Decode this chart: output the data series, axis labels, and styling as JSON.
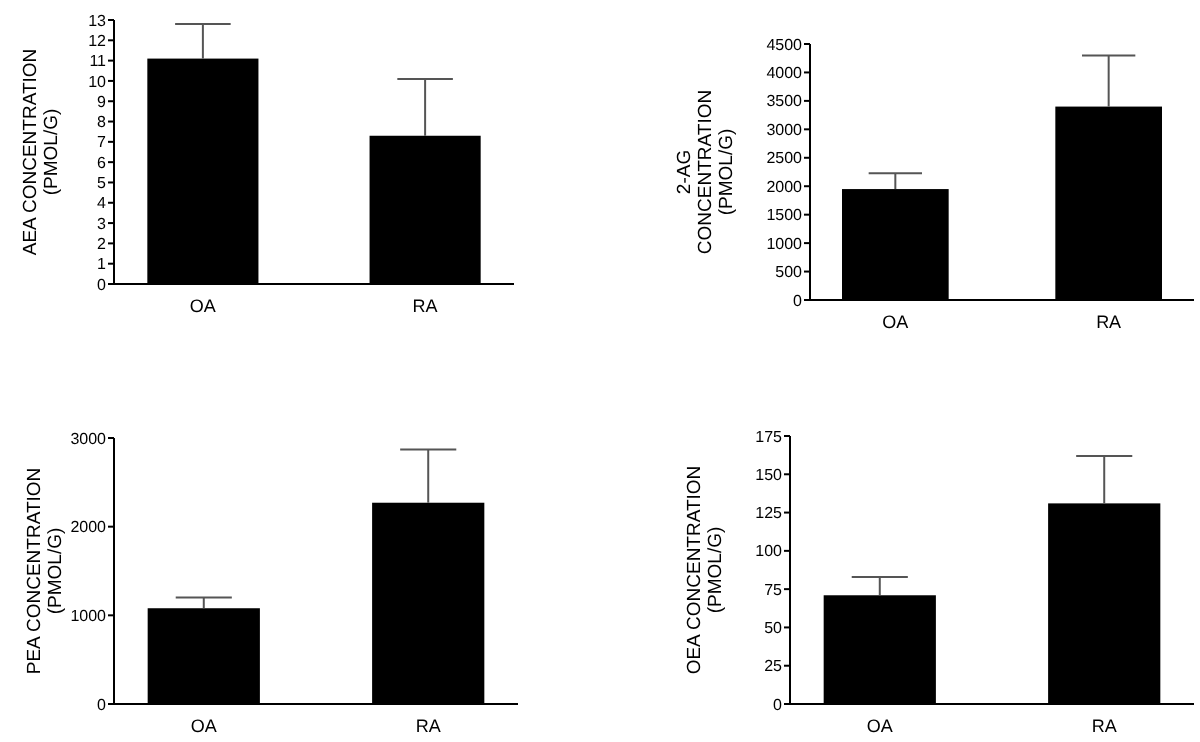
{
  "chart_data": [
    {
      "type": "bar",
      "ylabel": "AEA CONCENTRATION\n(PMOL/G)",
      "categories": [
        "OA",
        "RA"
      ],
      "values": [
        11.1,
        7.3
      ],
      "errors": [
        [
          11.1,
          12.8
        ],
        [
          7.3,
          10.1
        ]
      ],
      "color": "#000000",
      "ylim": [
        0,
        13
      ],
      "yticks": [
        0,
        1,
        2,
        3,
        4,
        5,
        6,
        7,
        8,
        9,
        10,
        11,
        12,
        13
      ]
    },
    {
      "type": "bar",
      "ylabel": "2-AG\nCONCENTRATION\n(PMOL/G)",
      "categories": [
        "OA",
        "RA"
      ],
      "values": [
        1950,
        3400
      ],
      "errors": [
        [
          1950,
          2230
        ],
        [
          3400,
          4300
        ]
      ],
      "color": "#000000",
      "ylim": [
        0,
        4500
      ],
      "yticks": [
        0,
        500,
        1000,
        1500,
        2000,
        2500,
        3000,
        3500,
        4000,
        4500
      ]
    },
    {
      "type": "bar",
      "ylabel": "PEA CONCENTRATION\n(PMOL/G)",
      "categories": [
        "OA",
        "RA"
      ],
      "values": [
        1080,
        2270
      ],
      "errors": [
        [
          1080,
          1200
        ],
        [
          2270,
          2870
        ]
      ],
      "color": "#000000",
      "ylim": [
        0,
        3000
      ],
      "yticks": [
        0,
        1000,
        2000,
        3000
      ]
    },
    {
      "type": "bar",
      "ylabel": "OEA CONCENTRATION\n(PMOL/G)",
      "categories": [
        "OA",
        "RA"
      ],
      "values": [
        71,
        131
      ],
      "errors": [
        [
          71,
          83
        ],
        [
          131,
          162
        ]
      ],
      "color": "#000000",
      "ylim": [
        0,
        175
      ],
      "yticks": [
        0,
        25,
        50,
        75,
        100,
        125,
        150,
        175
      ]
    }
  ]
}
